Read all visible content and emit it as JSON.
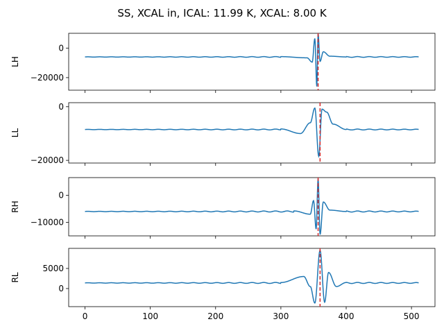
{
  "figure": {
    "suptitle": "SS, XCAL in, ICAL: 11.99 K, XCAL: 8.00 K"
  },
  "colors": {
    "line": "#1f77b4",
    "marker_line": "#d62728",
    "axes": "#000000"
  },
  "chart_data": [
    {
      "type": "line",
      "ylabel": "LH",
      "xlim": [
        -25,
        536
      ],
      "ylim": [
        -28500,
        10000
      ],
      "xticks": [
        0,
        100,
        200,
        300,
        400,
        500
      ],
      "xtick_labels_visible": false,
      "yticks": [
        0,
        -20000
      ],
      "ytick_labels": [
        "0",
        "−20000"
      ],
      "baseline": -6000,
      "peak_index": 357,
      "marker_x": 357,
      "series": [
        {
          "values_sample": {
            "x": [
              0,
              300,
              340,
              348,
              352,
              355,
              357,
              360,
              365,
              375,
              400,
              511
            ],
            "y": [
              -6000,
              -5800,
              -6600,
              -9500,
              6500,
              -26000,
              9500,
              -9000,
              -2500,
              -5500,
              -6000,
              -6000
            ]
          }
        }
      ]
    },
    {
      "type": "line",
      "ylabel": "LL",
      "xlim": [
        -25,
        536
      ],
      "ylim": [
        -21000,
        1500
      ],
      "xticks": [
        0,
        100,
        200,
        300,
        400,
        500
      ],
      "xtick_labels_visible": false,
      "yticks": [
        0,
        -20000
      ],
      "ytick_labels": [
        "0",
        "−20000"
      ],
      "baseline": -8500,
      "peak_index": 360,
      "marker_x": 360,
      "series": [
        {
          "values_sample": {
            "x": [
              0,
              300,
              330,
              345,
              352,
              358,
              363,
              370,
              380,
              400,
              511
            ],
            "y": [
              -8500,
              -8300,
              -10000,
              -6000,
              -500,
              -18500,
              -900,
              -2000,
              -6500,
              -8500,
              -8500
            ]
          }
        }
      ]
    },
    {
      "type": "line",
      "ylabel": "RH",
      "xlim": [
        -25,
        536
      ],
      "ylim": [
        -15000,
        6500
      ],
      "xticks": [
        0,
        100,
        200,
        300,
        400,
        500
      ],
      "xtick_labels_visible": false,
      "yticks": [
        0,
        -10000
      ],
      "ytick_labels": [
        "0",
        "−10000"
      ],
      "baseline": -6000,
      "peak_index": 357,
      "marker_x": 357,
      "series": [
        {
          "values_sample": {
            "x": [
              0,
              320,
              345,
              350,
              354,
              357,
              360,
              365,
              375,
              400,
              511
            ],
            "y": [
              -6000,
              -5800,
              -7000,
              -2000,
              -12500,
              6000,
              -14500,
              -2500,
              -5500,
              -6000,
              -6000
            ]
          }
        }
      ]
    },
    {
      "type": "line",
      "ylabel": "RL",
      "xlim": [
        -25,
        536
      ],
      "ylim": [
        -4500,
        10000
      ],
      "xticks": [
        0,
        100,
        200,
        300,
        400,
        500
      ],
      "xtick_labels": [
        "0",
        "100",
        "200",
        "300",
        "400",
        "500"
      ],
      "yticks": [
        0,
        5000
      ],
      "ytick_labels": [
        "0",
        "5000"
      ],
      "baseline": 1400,
      "peak_index": 360,
      "marker_x": 360,
      "series": [
        {
          "values_sample": {
            "x": [
              0,
              300,
              335,
              345,
              352,
              360,
              367,
              373,
              385,
              400,
              511
            ],
            "y": [
              1400,
              1500,
              3000,
              500,
              -3600,
              9500,
              -3400,
              4000,
              500,
              1500,
              1400
            ]
          }
        }
      ]
    }
  ]
}
